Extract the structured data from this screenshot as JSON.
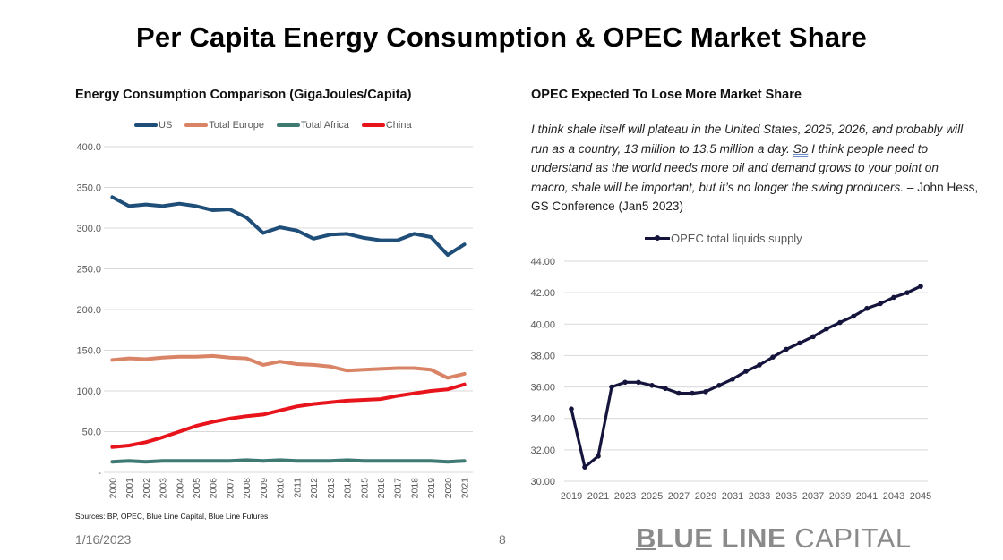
{
  "page": {
    "title": "Per Capita Energy Consumption & OPEC Market Share",
    "date": "1/16/2023",
    "page_number": "8",
    "brand_bold": "BLUE LINE",
    "brand_light": "CAPITAL",
    "sources": "Sources: BP, OPEC, Blue Line Capital, Blue Line Futures"
  },
  "quote": {
    "part1": "I think shale itself will plateau in the United States, 2025, 2026, and probably will run as a country, 13 million to 13.5 million a day. ",
    "so": "So",
    "part2": " I think people need to understand as the world needs more oil and demand grows to your point on macro, shale will be important, but it’s no longer the swing producers.",
    "attribution": " – John Hess, GS Conference (Jan5 2023)"
  },
  "chart_data": [
    {
      "type": "line",
      "title": "Energy Consumption Comparison (GigaJoules/Capita)",
      "xlabel": "",
      "ylabel": "",
      "ylim": [
        0,
        400
      ],
      "yticks": [
        0,
        50,
        100,
        150,
        200,
        250,
        300,
        350,
        400
      ],
      "ytick_labels": [
        "-",
        "50.0",
        "100.0",
        "150.0",
        "200.0",
        "250.0",
        "300.0",
        "350.0",
        "400.0"
      ],
      "grid": true,
      "legend": "top",
      "x": [
        "2000",
        "2001",
        "2002",
        "2003",
        "2004",
        "2005",
        "2006",
        "2007",
        "2008",
        "2009",
        "2010",
        "2011",
        "2012",
        "2013",
        "2014",
        "2015",
        "2016",
        "2017",
        "2018",
        "2019",
        "2020",
        "2021"
      ],
      "series": [
        {
          "name": "US",
          "color": "#1f4e79",
          "values": [
            338,
            327,
            329,
            327,
            330,
            327,
            322,
            323,
            313,
            294,
            301,
            297,
            287,
            292,
            293,
            288,
            285,
            285,
            293,
            289,
            267,
            280
          ]
        },
        {
          "name": "Total Europe",
          "color": "#d98466",
          "values": [
            138,
            140,
            139,
            141,
            142,
            142,
            143,
            141,
            140,
            132,
            136,
            133,
            132,
            130,
            125,
            126,
            127,
            128,
            128,
            126,
            116,
            121
          ]
        },
        {
          "name": "Total Africa",
          "color": "#3f7a72",
          "values": [
            13,
            14,
            13,
            14,
            14,
            14,
            14,
            14,
            15,
            14,
            15,
            14,
            14,
            14,
            15,
            14,
            14,
            14,
            14,
            14,
            13,
            14
          ]
        },
        {
          "name": "China",
          "color": "#e8141b",
          "values": [
            31,
            33,
            37,
            43,
            50,
            57,
            62,
            66,
            69,
            71,
            76,
            81,
            84,
            86,
            88,
            89,
            90,
            94,
            97,
            100,
            102,
            108
          ]
        }
      ]
    },
    {
      "type": "line",
      "title": "OPEC Expected To Lose More Market Share",
      "xlabel": "",
      "ylabel": "",
      "ylim": [
        30,
        44
      ],
      "yticks": [
        30,
        32,
        34,
        36,
        38,
        40,
        42,
        44
      ],
      "ytick_labels": [
        "30.00",
        "32.00",
        "34.00",
        "36.00",
        "38.00",
        "40.00",
        "42.00",
        "44.00"
      ],
      "xtick_labels": [
        "2019",
        "2021",
        "2023",
        "2025",
        "2027",
        "2029",
        "2031",
        "2033",
        "2035",
        "2037",
        "2039",
        "2041",
        "2043",
        "2045"
      ],
      "grid": true,
      "legend": "top",
      "x": [
        2019,
        2020,
        2021,
        2022,
        2023,
        2024,
        2025,
        2026,
        2027,
        2028,
        2029,
        2030,
        2031,
        2032,
        2033,
        2034,
        2035,
        2036,
        2037,
        2038,
        2039,
        2040,
        2041,
        2042,
        2043,
        2044,
        2045
      ],
      "series": [
        {
          "name": "OPEC total liquids supply",
          "color": "#14143c",
          "values": [
            34.6,
            30.9,
            31.6,
            36.0,
            36.3,
            36.3,
            36.1,
            35.9,
            35.6,
            35.6,
            35.7,
            36.1,
            36.5,
            37.0,
            37.4,
            37.9,
            38.4,
            38.8,
            39.2,
            39.7,
            40.1,
            40.5,
            41.0,
            41.3,
            41.7,
            42.0,
            42.4
          ]
        }
      ]
    }
  ]
}
